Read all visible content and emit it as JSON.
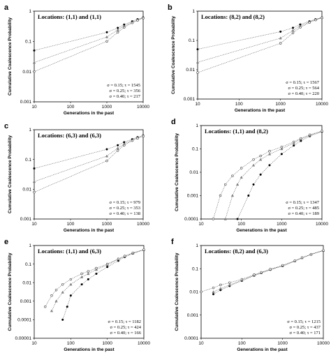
{
  "chart_data": [
    {
      "panel": "a",
      "type": "scatter",
      "title": "Locations: (1,1) and (1,1)",
      "xlabel": "Generations in the past",
      "ylabel": "Cumulative Coalescence Probability",
      "xscale": "log",
      "yscale": "log",
      "xlim": [
        10,
        10000
      ],
      "ylim": [
        0.001,
        1
      ],
      "xticks": [
        "10",
        "100",
        "1000",
        "10000"
      ],
      "yticks": [
        "0.001",
        "0.01",
        "0.1",
        "1"
      ],
      "legend": [
        "σ = 0.15; τ = 1545",
        "σ = 0.25; τ = 356",
        "σ = 0.40; τ = 217"
      ],
      "series": [
        {
          "x": [
            10,
            1000,
            2000,
            3000,
            5000,
            7000,
            10000
          ],
          "y": [
            0.05,
            0.2,
            0.28,
            0.36,
            0.46,
            0.54,
            0.62
          ],
          "marker": "circle-filled"
        },
        {
          "x": [
            10,
            1000,
            2000,
            3000,
            5000,
            7000,
            10000
          ],
          "y": [
            0.02,
            0.14,
            0.24,
            0.32,
            0.43,
            0.51,
            0.6
          ],
          "marker": "triangle"
        },
        {
          "x": [
            10,
            1000,
            2000,
            3000,
            5000,
            7000,
            10000
          ],
          "y": [
            0.01,
            0.1,
            0.2,
            0.29,
            0.41,
            0.5,
            0.59
          ],
          "marker": "circle-open"
        }
      ]
    },
    {
      "panel": "b",
      "type": "scatter",
      "title": "Locations: (8,2) and (8,2)",
      "xlabel": "Generations in the past",
      "ylabel": "Cumulative Coalescence Probability",
      "xscale": "log",
      "yscale": "log",
      "xlim": [
        10,
        10000
      ],
      "ylim": [
        0.001,
        1
      ],
      "xticks": [
        "10",
        "100",
        "1000",
        "10000"
      ],
      "yticks": [
        "0.001",
        "0.01",
        "0.1",
        "1"
      ],
      "legend": [
        "σ = 0.15; τ = 1567",
        "σ = 0.25; τ = 564",
        "σ = 0.40; τ = 220"
      ],
      "series": [
        {
          "x": [
            10,
            1000,
            2000,
            3000,
            5000,
            7000,
            10000
          ],
          "y": [
            0.05,
            0.2,
            0.27,
            0.35,
            0.45,
            0.53,
            0.61
          ],
          "marker": "circle-filled"
        },
        {
          "x": [
            10,
            1000,
            2000,
            3000,
            5000,
            7000,
            10000
          ],
          "y": [
            0.018,
            0.12,
            0.22,
            0.31,
            0.43,
            0.51,
            0.6
          ],
          "marker": "triangle"
        },
        {
          "x": [
            10,
            1000,
            2000,
            3000,
            5000,
            7000,
            10000
          ],
          "y": [
            0.008,
            0.08,
            0.18,
            0.28,
            0.41,
            0.5,
            0.59
          ],
          "marker": "circle-open"
        }
      ]
    },
    {
      "panel": "c",
      "type": "scatter",
      "title": "Locations: (6,3) and (6,3)",
      "xlabel": "Generations in the past",
      "ylabel": "Cumulative Coalescence Probability",
      "xscale": "log",
      "yscale": "log",
      "xlim": [
        10,
        10000
      ],
      "ylim": [
        0.001,
        1
      ],
      "xticks": [
        "10",
        "100",
        "1000",
        "10000"
      ],
      "yticks": [
        "0.001",
        "0.01",
        "0.1",
        "1"
      ],
      "legend": [
        "σ = 0.15; τ = 979",
        "σ = 0.25; τ = 353",
        "σ = 0.40; τ = 138"
      ],
      "series": [
        {
          "x": [
            10,
            1000,
            2000,
            3000,
            5000,
            7000,
            10000
          ],
          "y": [
            0.05,
            0.22,
            0.3,
            0.38,
            0.48,
            0.56,
            0.64
          ],
          "marker": "circle-filled"
        },
        {
          "x": [
            10,
            1000,
            2000,
            3000,
            5000,
            7000,
            10000
          ],
          "y": [
            0.018,
            0.13,
            0.24,
            0.33,
            0.45,
            0.53,
            0.62
          ],
          "marker": "triangle"
        },
        {
          "x": [
            10,
            1000,
            2000,
            3000,
            5000,
            7000,
            10000
          ],
          "y": [
            0.008,
            0.09,
            0.2,
            0.3,
            0.43,
            0.52,
            0.61
          ],
          "marker": "circle-open"
        }
      ]
    },
    {
      "panel": "d",
      "type": "scatter",
      "title": "Locations: (1,1) and (8,2)",
      "xlabel": "Generations in the past",
      "ylabel": "Cumulative Coalescence Probability",
      "xscale": "log",
      "yscale": "log",
      "xlim": [
        10,
        10000
      ],
      "ylim": [
        0.0001,
        1
      ],
      "xticks": [
        "10",
        "100",
        "1000",
        "10000"
      ],
      "yticks": [
        "0.0001",
        "0.001",
        "0.01",
        "0.1",
        "1"
      ],
      "legend": [
        "σ = 0.15; τ = 1347",
        "σ = 0.25; τ = 485",
        "σ = 0.40; τ = 189"
      ],
      "series": [
        {
          "x": [
            80,
            150,
            200,
            300,
            500,
            1000,
            2000,
            3000,
            5000,
            10000
          ],
          "y": [
            0.0001,
            0.001,
            0.003,
            0.008,
            0.02,
            0.06,
            0.14,
            0.22,
            0.35,
            0.55
          ],
          "marker": "circle-filled"
        },
        {
          "x": [
            40,
            60,
            80,
            100,
            200,
            300,
            500,
            1000,
            2000,
            3000,
            5000,
            10000
          ],
          "y": [
            0.0001,
            0.001,
            0.003,
            0.006,
            0.02,
            0.035,
            0.06,
            0.1,
            0.18,
            0.26,
            0.38,
            0.57
          ],
          "marker": "triangle"
        },
        {
          "x": [
            20,
            30,
            40,
            60,
            100,
            200,
            300,
            500,
            1000,
            2000,
            3000,
            5000,
            10000
          ],
          "y": [
            0.0001,
            0.001,
            0.003,
            0.007,
            0.015,
            0.035,
            0.05,
            0.08,
            0.12,
            0.2,
            0.28,
            0.4,
            0.58
          ],
          "marker": "circle-open"
        }
      ]
    },
    {
      "panel": "e",
      "type": "scatter",
      "title": "Locations: (1,1) and (6,3)",
      "xlabel": "Generations in the past",
      "ylabel": "Cumulative Coalescence Probability",
      "xscale": "log",
      "yscale": "log",
      "xlim": [
        10,
        10000
      ],
      "ylim": [
        1e-05,
        1
      ],
      "xticks": [
        "10",
        "100",
        "1000",
        "10000"
      ],
      "yticks": [
        "0.00001",
        "0.0001",
        "0.001",
        "0.01",
        "0.1",
        "1"
      ],
      "legend": [
        "σ = 0.15; τ = 1182",
        "σ = 0.25; τ = 424",
        "σ = 0.40; τ = 166"
      ],
      "series": [
        {
          "x": [
            60,
            80,
            100,
            200,
            300,
            500,
            1000,
            2000,
            3000,
            5000,
            10000
          ],
          "y": [
            0.0001,
            0.0005,
            0.002,
            0.008,
            0.015,
            0.03,
            0.07,
            0.15,
            0.24,
            0.37,
            0.58
          ],
          "marker": "circle-filled"
        },
        {
          "x": [
            30,
            40,
            60,
            100,
            200,
            300,
            500,
            1000,
            2000,
            3000,
            5000,
            10000
          ],
          "y": [
            0.0003,
            0.001,
            0.003,
            0.008,
            0.02,
            0.03,
            0.05,
            0.09,
            0.18,
            0.26,
            0.39,
            0.59
          ],
          "marker": "triangle"
        },
        {
          "x": [
            20,
            30,
            40,
            60,
            100,
            200,
            300,
            500,
            1000,
            2000,
            3000,
            5000,
            10000
          ],
          "y": [
            0.0005,
            0.002,
            0.004,
            0.008,
            0.015,
            0.03,
            0.04,
            0.06,
            0.1,
            0.19,
            0.27,
            0.4,
            0.6
          ],
          "marker": "circle-open"
        }
      ]
    },
    {
      "panel": "f",
      "type": "scatter",
      "title": "Locations: (8,2) and (6,3)",
      "xlabel": "Generations in the past",
      "ylabel": "Cumulative Coalescence Probability",
      "xscale": "log",
      "yscale": "log",
      "xlim": [
        10,
        10000
      ],
      "ylim": [
        0.0001,
        1
      ],
      "xticks": [
        "10",
        "100",
        "1000",
        "10000"
      ],
      "yticks": [
        "0.0001",
        "0.001",
        "0.01",
        "0.1",
        "1"
      ],
      "legend": [
        "σ = 0.15; τ = 1215",
        "σ = 0.25; τ = 437",
        "σ = 0.40; τ = 171"
      ],
      "series": [
        {
          "x": [
            20,
            30,
            50,
            100,
            200,
            300,
            500,
            1000,
            2000,
            3000,
            5000,
            10000
          ],
          "y": [
            0.008,
            0.012,
            0.018,
            0.03,
            0.05,
            0.065,
            0.09,
            0.13,
            0.21,
            0.29,
            0.41,
            0.6
          ],
          "marker": "circle-filled"
        },
        {
          "x": [
            20,
            30,
            50,
            100,
            200,
            300,
            500,
            1000,
            2000,
            3000,
            5000,
            10000
          ],
          "y": [
            0.01,
            0.014,
            0.02,
            0.032,
            0.052,
            0.067,
            0.092,
            0.135,
            0.215,
            0.295,
            0.415,
            0.61
          ],
          "marker": "triangle"
        },
        {
          "x": [
            10,
            20,
            30,
            50,
            100,
            200,
            300,
            500,
            1000,
            2000,
            3000,
            5000,
            10000
          ],
          "y": [
            0.01,
            0.015,
            0.02,
            0.025,
            0.035,
            0.055,
            0.07,
            0.095,
            0.14,
            0.22,
            0.3,
            0.42,
            0.62
          ],
          "marker": "circle-open"
        }
      ]
    }
  ]
}
